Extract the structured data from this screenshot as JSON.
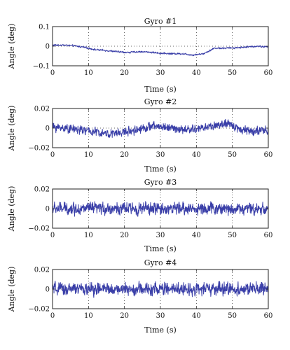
{
  "figure": {
    "background": "#ffffff",
    "line_color": "#3a3fa8"
  },
  "chart_data": [
    {
      "type": "line",
      "title": "Gyro #1",
      "xlabel": "Time (s)",
      "ylabel": "Angle (deg)",
      "xlim": [
        0,
        60
      ],
      "ylim": [
        -0.1,
        0.1
      ],
      "xticks": [
        0,
        10,
        20,
        30,
        40,
        50,
        60
      ],
      "yticks": [
        -0.1,
        0,
        0.1
      ],
      "ytick_labels": [
        "−0.1",
        "0",
        "0.1"
      ],
      "xtick_labels": [
        "0",
        "10",
        "20",
        "30",
        "40",
        "50",
        "60"
      ],
      "grid": true,
      "series": [
        {
          "color": "#3a3fa8",
          "trend_x": [
            0,
            3,
            6,
            9,
            12,
            15,
            18,
            21,
            24,
            27,
            30,
            33,
            36,
            39,
            42,
            45,
            48,
            51,
            54,
            57,
            60
          ],
          "trend_y": [
            0.005,
            0.006,
            0.002,
            -0.006,
            -0.018,
            -0.022,
            -0.028,
            -0.032,
            -0.028,
            -0.03,
            -0.036,
            -0.038,
            -0.038,
            -0.045,
            -0.038,
            -0.01,
            -0.01,
            -0.008,
            -0.004,
            0.0,
            -0.004
          ],
          "noise_amplitude": 0.006
        }
      ]
    },
    {
      "type": "line",
      "title": "Gyro #2",
      "xlabel": "Time (s)",
      "ylabel": "Angle (deg)",
      "xlim": [
        0,
        60
      ],
      "ylim": [
        -0.02,
        0.02
      ],
      "xticks": [
        0,
        10,
        20,
        30,
        40,
        50,
        60
      ],
      "yticks": [
        -0.02,
        0,
        0.02
      ],
      "ytick_labels": [
        "−0.02",
        "0",
        "0.02"
      ],
      "xtick_labels": [
        "0",
        "10",
        "20",
        "30",
        "40",
        "50",
        "60"
      ],
      "grid": true,
      "series": [
        {
          "color": "#3a3fa8",
          "trend_x": [
            0,
            4,
            8,
            12,
            16,
            20,
            24,
            28,
            32,
            36,
            40,
            44,
            48,
            50,
            52,
            56,
            60
          ],
          "trend_y": [
            0.001,
            0.0,
            -0.002,
            -0.004,
            -0.006,
            -0.004,
            -0.001,
            0.002,
            0.001,
            -0.002,
            -0.001,
            0.002,
            0.004,
            0.003,
            -0.001,
            -0.003,
            -0.003
          ],
          "noise_amplitude": 0.006
        }
      ]
    },
    {
      "type": "line",
      "title": "Gyro #3",
      "xlabel": "Time (s)",
      "ylabel": "Angle (deg)",
      "xlim": [
        0,
        60
      ],
      "ylim": [
        -0.02,
        0.02
      ],
      "xticks": [
        0,
        10,
        20,
        30,
        40,
        50,
        60
      ],
      "yticks": [
        -0.02,
        0,
        0.02
      ],
      "ytick_labels": [
        "−0.02",
        "0",
        "0.02"
      ],
      "xtick_labels": [
        "0",
        "10",
        "20",
        "30",
        "40",
        "50",
        "60"
      ],
      "grid": true,
      "series": [
        {
          "color": "#3a3fa8",
          "trend_x": [
            0,
            60
          ],
          "trend_y": [
            0,
            0
          ],
          "noise_amplitude": 0.0085
        }
      ]
    },
    {
      "type": "line",
      "title": "Gyro #4",
      "xlabel": "Time (s)",
      "ylabel": "Angle (deg)",
      "xlim": [
        0,
        60
      ],
      "ylim": [
        -0.02,
        0.02
      ],
      "xticks": [
        0,
        10,
        20,
        30,
        40,
        50,
        60
      ],
      "yticks": [
        -0.02,
        0,
        0.02
      ],
      "ytick_labels": [
        "−0.02",
        "0",
        "0.02"
      ],
      "xtick_labels": [
        "0",
        "10",
        "20",
        "30",
        "40",
        "50",
        "60"
      ],
      "grid": true,
      "series": [
        {
          "color": "#3a3fa8",
          "trend_x": [
            0,
            60
          ],
          "trend_y": [
            0,
            0
          ],
          "noise_amplitude": 0.009
        }
      ]
    }
  ]
}
